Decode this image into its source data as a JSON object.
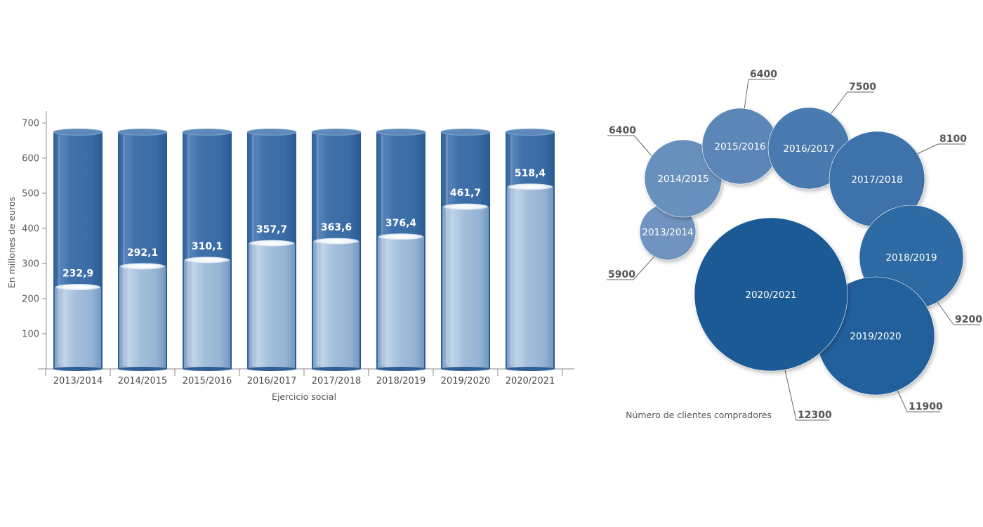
{
  "charts": {
    "bar": {
      "type": "bar",
      "ylabel": "En millones de euros",
      "xlabel": "Ejercicio social",
      "ylim": [
        0,
        700
      ],
      "yticks": [
        "100",
        "200",
        "300",
        "400",
        "500",
        "600",
        "700"
      ],
      "categories": [
        "2013/2014",
        "2014/2015",
        "2015/2016",
        "2016/2017",
        "2017/2018",
        "2018/2019",
        "2019/2020",
        "2020/2021"
      ],
      "values": [
        232.9,
        292.1,
        310.1,
        357.7,
        363.6,
        376.4,
        461.7,
        518.4
      ],
      "value_labels": [
        "232,9",
        "292,1",
        "310,1",
        "357,7",
        "363,6",
        "376,4",
        "461,7",
        "518,4"
      ],
      "colors": {
        "cylinder": "#3d6ea6",
        "fill": "#9fbcd8",
        "axis": "#8a8a8a"
      }
    },
    "bubble": {
      "type": "scatter",
      "caption": "Número de clientes compradores",
      "points": [
        {
          "label": "2013/2014",
          "value": 5900,
          "value_label": "5900",
          "color": "#6f94bf"
        },
        {
          "label": "2014/2015",
          "value": 6400,
          "value_label": "6400",
          "color": "#6790bd"
        },
        {
          "label": "2015/2016",
          "value": 6400,
          "value_label": "6400",
          "color": "#5b86b7"
        },
        {
          "label": "2016/2017",
          "value": 7500,
          "value_label": "7500",
          "color": "#4a7aaf"
        },
        {
          "label": "2017/2018",
          "value": 8100,
          "value_label": "8100",
          "color": "#3d72aa"
        },
        {
          "label": "2018/2019",
          "value": 9200,
          "value_label": "9200",
          "color": "#2d6aa4"
        },
        {
          "label": "2019/2020",
          "value": 11900,
          "value_label": "11900",
          "color": "#22609c"
        },
        {
          "label": "2020/2021",
          "value": 12300,
          "value_label": "12300",
          "color": "#1d5a96"
        }
      ]
    }
  },
  "chart_data": [
    {
      "type": "bar",
      "categories": [
        "2013/2014",
        "2014/2015",
        "2015/2016",
        "2016/2017",
        "2017/2018",
        "2018/2019",
        "2019/2020",
        "2020/2021"
      ],
      "values": [
        232.9,
        292.1,
        310.1,
        357.7,
        363.6,
        376.4,
        461.7,
        518.4
      ],
      "xlabel": "Ejercicio social",
      "ylabel": "En millones de euros",
      "ylim": [
        0,
        700
      ],
      "grid": false
    },
    {
      "type": "scatter",
      "categories": [
        "2013/2014",
        "2014/2015",
        "2015/2016",
        "2016/2017",
        "2017/2018",
        "2018/2019",
        "2019/2020",
        "2020/2021"
      ],
      "values": [
        5900,
        6400,
        6400,
        7500,
        8100,
        9200,
        11900,
        12300
      ],
      "xlabel": "Número de clientes compradores"
    }
  ]
}
